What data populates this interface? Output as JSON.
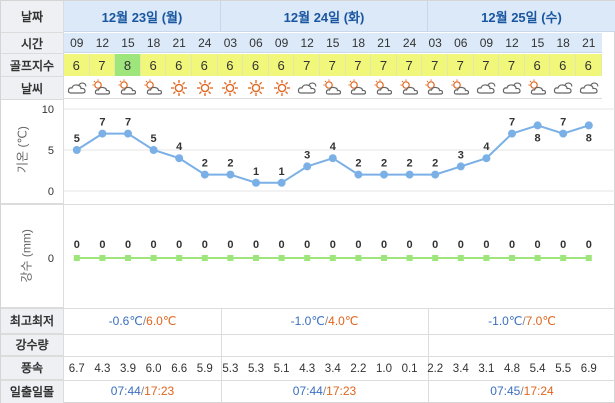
{
  "header": {
    "date_label": "날짜",
    "days": [
      "12월 23일 (월)",
      "12월 24일 (화)",
      "12월 25일 (수)"
    ]
  },
  "rows": {
    "time_label": "시간",
    "golf_label": "골프지수",
    "weather_label": "날씨",
    "minmax_label": "최고최저",
    "precip_label": "강수량",
    "wind_label": "풍속",
    "sun_label": "일출일몰"
  },
  "times": [
    "09",
    "12",
    "15",
    "18",
    "21",
    "24",
    "03",
    "06",
    "09",
    "12",
    "15",
    "18",
    "21",
    "24",
    "03",
    "06",
    "09",
    "12",
    "15",
    "18",
    "21"
  ],
  "golf_index": [
    "6",
    "7",
    "8",
    "6",
    "6",
    "6",
    "6",
    "6",
    "6",
    "7",
    "7",
    "7",
    "7",
    "7",
    "7",
    "7",
    "7",
    "7",
    "6",
    "6",
    "6"
  ],
  "weather_icons": [
    "cloudy-icon",
    "partly-cloudy-icon",
    "partly-cloudy-icon",
    "partly-cloudy-icon",
    "sunny-icon",
    "sunny-icon",
    "sunny-icon",
    "sunny-icon",
    "sunny-icon",
    "cloudy-icon",
    "partly-cloudy-icon",
    "partly-cloudy-icon",
    "partly-cloudy-icon",
    "partly-cloudy-icon",
    "partly-cloudy-icon",
    "partly-cloudy-icon",
    "cloudy-icon",
    "cloudy-icon",
    "partly-cloudy-icon",
    "cloudy-icon",
    "cloudy-icon"
  ],
  "temp_axis_label": "기온 (℃)",
  "precip_axis_label": "강수 (mm)",
  "chart_data": [
    {
      "type": "line",
      "x": [
        "09",
        "12",
        "15",
        "18",
        "21",
        "24",
        "03",
        "06",
        "09",
        "12",
        "15",
        "18",
        "21",
        "24",
        "03",
        "06",
        "09",
        "12",
        "15",
        "18",
        "21"
      ],
      "series": [
        {
          "values": [
            5,
            7,
            7,
            5,
            4,
            2,
            2,
            1,
            1,
            3,
            4,
            2,
            2,
            2,
            2,
            3,
            4,
            7,
            8,
            7,
            8
          ]
        }
      ],
      "ylabel": "기온 (℃)",
      "yticks": [
        "10",
        "5",
        "0"
      ],
      "ylim": [
        0,
        10
      ],
      "grid": true
    },
    {
      "type": "line",
      "x": [
        "09",
        "12",
        "15",
        "18",
        "21",
        "24",
        "03",
        "06",
        "09",
        "12",
        "15",
        "18",
        "21",
        "24",
        "03",
        "06",
        "09",
        "12",
        "15",
        "18",
        "21"
      ],
      "series": [
        {
          "values": [
            0,
            0,
            0,
            0,
            0,
            0,
            0,
            0,
            0,
            0,
            0,
            0,
            0,
            0,
            0,
            0,
            0,
            0,
            0,
            0,
            0
          ]
        }
      ],
      "ylabel": "강수 (mm)",
      "yticks": [
        "0"
      ],
      "ylim": [
        0,
        1
      ]
    }
  ],
  "minmax": [
    {
      "min": "-0.6℃",
      "sep": "/",
      "max": "6.0℃"
    },
    {
      "min": "-1.0℃",
      "sep": "/",
      "max": "4.0℃"
    },
    {
      "min": "-1.0℃",
      "sep": "/",
      "max": "7.0℃"
    }
  ],
  "wind": [
    "6.7",
    "4.3",
    "3.9",
    "6.0",
    "6.6",
    "5.9",
    "5.3",
    "5.3",
    "5.1",
    "4.3",
    "3.4",
    "2.2",
    "1.0",
    "0.1",
    "2.2",
    "3.4",
    "3.1",
    "4.8",
    "5.4",
    "5.5",
    "6.9"
  ],
  "sun": [
    {
      "rise": "07:44",
      "sep": "/",
      "set": "17:23"
    },
    {
      "rise": "07:44",
      "sep": "/",
      "set": "17:23"
    },
    {
      "rise": "07:45",
      "sep": "/",
      "set": "17:24"
    }
  ],
  "colors": {
    "line": "#7ab0e6",
    "point": "#7ab0e6",
    "rain_line": "#9ee57c",
    "golf_default": "#f0f77a",
    "golf_high": "#9ee57c",
    "sun": "#e0641c",
    "cloud": "#666666"
  }
}
